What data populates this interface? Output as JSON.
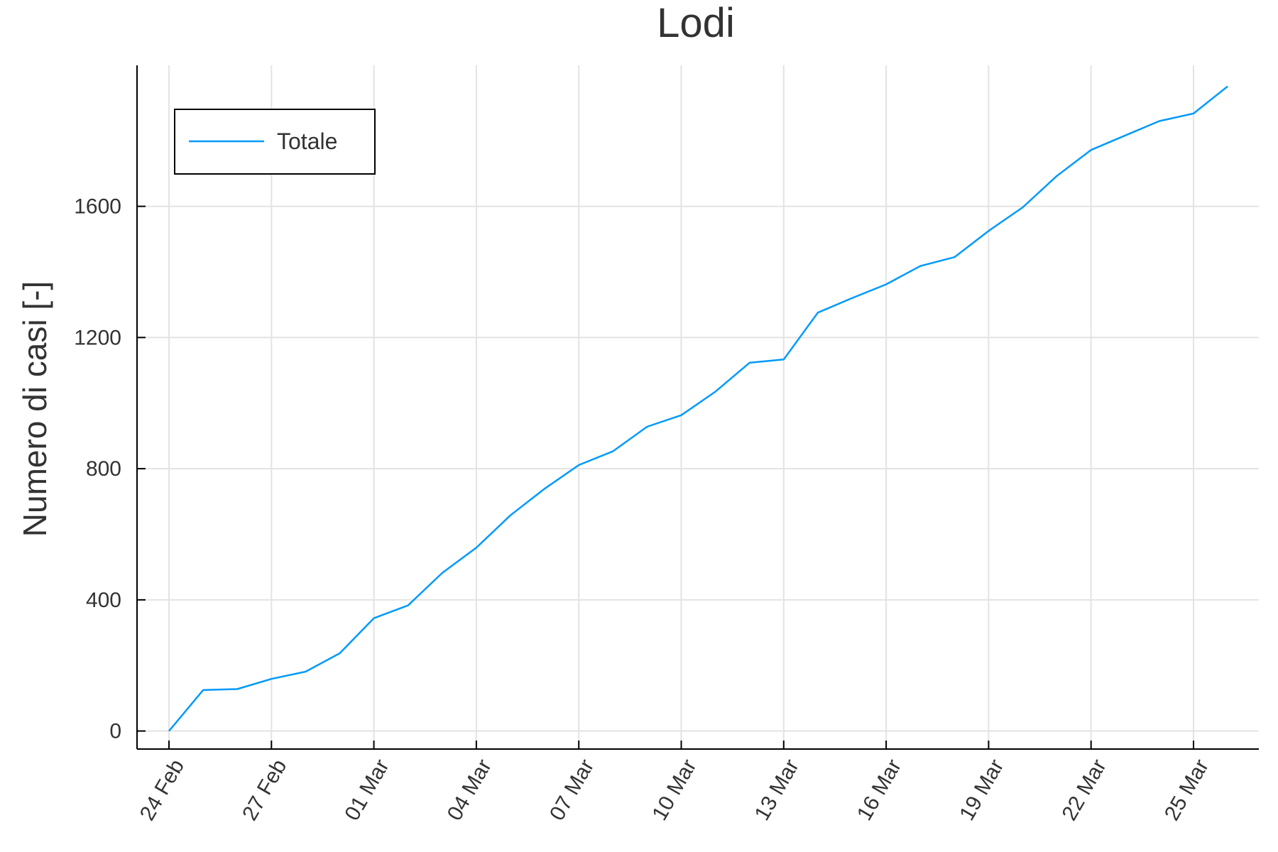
{
  "chart_data": {
    "type": "line",
    "title": "Lodi",
    "xlabel": "",
    "ylabel": "Numero di casi [-]",
    "x_tick_labels": [
      "24 Feb",
      "27 Feb",
      "01 Mar",
      "04 Mar",
      "07 Mar",
      "10 Mar",
      "13 Mar",
      "16 Mar",
      "19 Mar",
      "22 Mar",
      "25 Mar"
    ],
    "y_ticks": [
      0,
      400,
      800,
      1200,
      1600
    ],
    "ylim": [
      -55,
      2030
    ],
    "grid": true,
    "legend_position": "top-left",
    "x": [
      "24 Feb",
      "25 Feb",
      "26 Feb",
      "27 Feb",
      "28 Feb",
      "29 Feb",
      "01 Mar",
      "02 Mar",
      "03 Mar",
      "04 Mar",
      "05 Mar",
      "06 Mar",
      "07 Mar",
      "08 Mar",
      "09 Mar",
      "10 Mar",
      "11 Mar",
      "12 Mar",
      "13 Mar",
      "14 Mar",
      "15 Mar",
      "16 Mar",
      "17 Mar",
      "18 Mar",
      "19 Mar",
      "20 Mar",
      "21 Mar",
      "22 Mar",
      "23 Mar",
      "24 Mar",
      "25 Mar",
      "26 Mar"
    ],
    "series": [
      {
        "name": "Totale",
        "color": "#009AFA",
        "values": [
          0,
          125,
          128,
          159,
          181,
          237,
          344,
          383,
          482,
          559,
          658,
          739,
          811,
          853,
          928,
          963,
          1035,
          1123,
          1133,
          1276,
          1320,
          1362,
          1418,
          1445,
          1525,
          1597,
          1693,
          1772,
          1816,
          1860,
          1883,
          1966
        ]
      }
    ]
  }
}
